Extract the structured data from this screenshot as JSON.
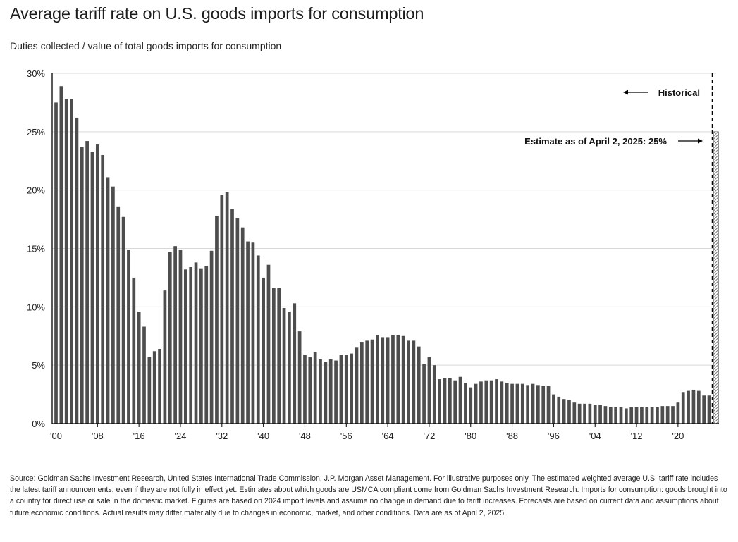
{
  "title": "Average tariff rate on U.S. goods imports for consumption",
  "subtitle": "Duties collected / value of total goods imports for consumption",
  "source": "Source: Goldman Sachs Investment Research, United States International Trade Commission, J.P. Morgan Asset Management. For illustrative purposes only. The estimated weighted average U.S. tariff rate includes the latest tariff announcements, even if they are not fully in effect yet. Estimates about which goods are USMCA compliant come from Goldman Sachs Investment Research. Imports for consumption: goods brought into a country for direct use or sale in the domestic market. Figures are based on 2024 import levels and assume no change in demand due to tariff increases. Forecasts are based on current data and assumptions about future economic conditions. Actual results may differ materially due to changes in economic, market, and other conditions. Data are as of April 2, 2025.",
  "colors": {
    "bar": "#4d4d4d",
    "estimate_hatch": "#555555",
    "grid": "#d9d9d9",
    "axis": "#000000"
  },
  "chart_data": {
    "type": "bar",
    "title": "Average tariff rate on U.S. goods imports for consumption",
    "subtitle": "Duties collected / value of total goods imports for consumption",
    "ylim": [
      0,
      30
    ],
    "y_ticks": [
      0,
      5,
      10,
      15,
      20,
      25,
      30
    ],
    "y_tick_labels": [
      "0%",
      "5%",
      "10%",
      "15%",
      "20%",
      "25%",
      "30%"
    ],
    "x_tick_years": [
      1900,
      1908,
      1916,
      1924,
      1932,
      1940,
      1948,
      1956,
      1964,
      1972,
      1980,
      1988,
      1996,
      2004,
      2012,
      2020
    ],
    "x_tick_labels": [
      "'00",
      "'08",
      "'16",
      "'24",
      "'32",
      "'40",
      "'48",
      "'56",
      "'64",
      "'72",
      "'80",
      "'88",
      "'96",
      "'04",
      "'12",
      "'20"
    ],
    "grid": true,
    "series": [
      {
        "x_start": 1900,
        "x_end": 2024,
        "values": [
          27.5,
          28.9,
          27.8,
          27.8,
          26.2,
          23.7,
          24.2,
          23.3,
          23.9,
          23.0,
          21.1,
          20.3,
          18.6,
          17.7,
          14.9,
          12.5,
          9.6,
          8.3,
          5.7,
          6.2,
          6.4,
          11.4,
          14.7,
          15.2,
          14.9,
          13.2,
          13.4,
          13.8,
          13.3,
          13.5,
          14.8,
          17.8,
          19.6,
          19.8,
          18.4,
          17.6,
          16.8,
          15.6,
          15.5,
          14.4,
          12.5,
          13.6,
          11.6,
          11.6,
          9.9,
          9.6,
          10.3,
          7.9,
          5.9,
          5.7,
          6.1,
          5.5,
          5.3,
          5.5,
          5.4,
          5.9,
          5.9,
          6.0,
          6.5,
          7.0,
          7.1,
          7.2,
          7.6,
          7.4,
          7.4,
          7.6,
          7.6,
          7.5,
          7.1,
          7.1,
          6.6,
          5.1,
          5.7,
          5.0,
          3.8,
          3.9,
          3.9,
          3.7,
          4.0,
          3.5,
          3.1,
          3.4,
          3.6,
          3.7,
          3.7,
          3.8,
          3.6,
          3.5,
          3.4,
          3.4,
          3.4,
          3.3,
          3.4,
          3.3,
          3.2,
          3.2,
          2.5,
          2.3,
          2.1,
          2.0,
          1.8,
          1.7,
          1.7,
          1.7,
          1.6,
          1.6,
          1.5,
          1.4,
          1.4,
          1.4,
          1.3,
          1.4,
          1.4,
          1.4,
          1.4,
          1.4,
          1.4,
          1.5,
          1.5,
          1.5,
          1.8,
          2.7,
          2.8,
          2.9,
          2.8,
          2.4,
          2.4
        ]
      }
    ],
    "estimate": {
      "label": "Estimate as of April 2, 2025: 25%",
      "value": 25
    },
    "annotations": [
      {
        "text": "Historical",
        "arrow": "left"
      },
      {
        "text": "Estimate as of April 2, 2025: 25%",
        "arrow": "right"
      }
    ]
  }
}
